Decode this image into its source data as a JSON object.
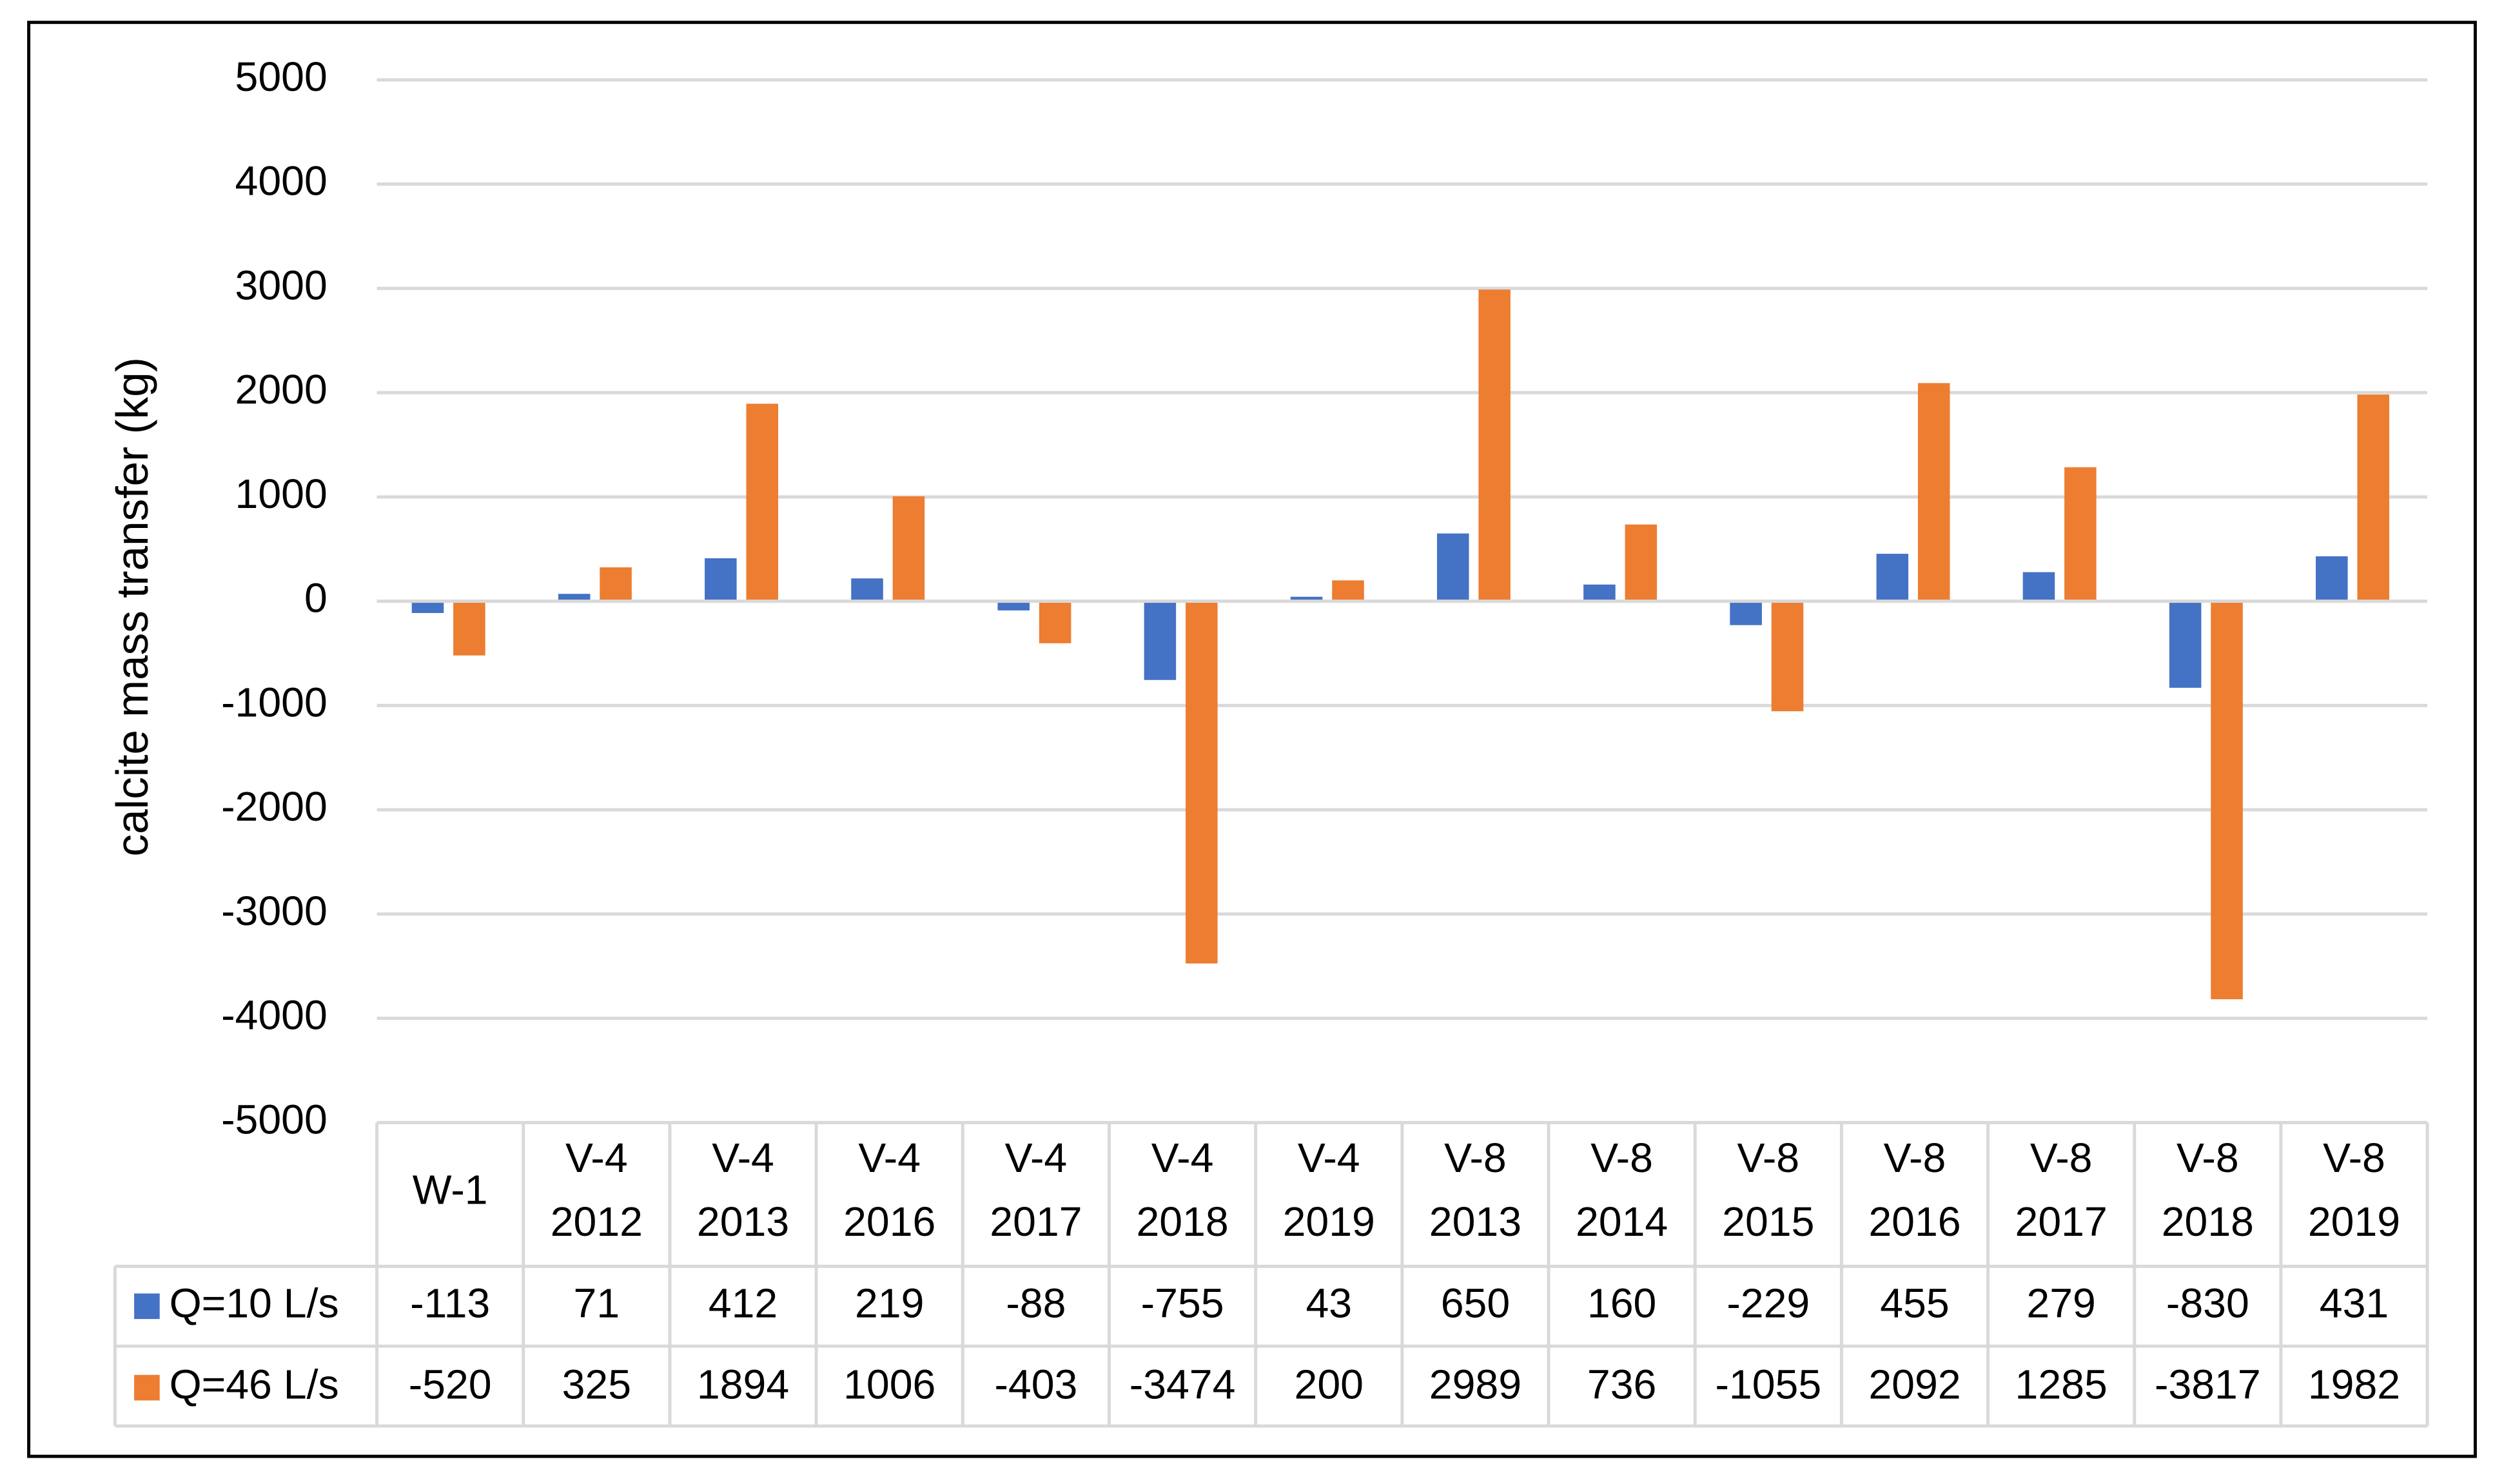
{
  "chart_data": {
    "type": "bar",
    "y_axis_label": "calcite mass transfer (kg)",
    "categories": [
      [
        "W-1"
      ],
      [
        "V-4",
        "2012"
      ],
      [
        "V-4",
        "2013"
      ],
      [
        "V-4",
        "2016"
      ],
      [
        "V-4",
        "2017"
      ],
      [
        "V-4",
        "2018"
      ],
      [
        "V-4",
        "2019"
      ],
      [
        "V-8",
        "2013"
      ],
      [
        "V-8",
        "2014"
      ],
      [
        "V-8",
        "2015"
      ],
      [
        "V-8",
        "2016"
      ],
      [
        "V-8",
        "2017"
      ],
      [
        "V-8",
        "2018"
      ],
      [
        "V-8",
        "2019"
      ]
    ],
    "series": [
      {
        "name": "Q=10 L/s",
        "color": "#4472c4",
        "values": [
          -113,
          71,
          412,
          219,
          -88,
          -755,
          43,
          650,
          160,
          -229,
          455,
          279,
          -830,
          431
        ]
      },
      {
        "name": "Q=46 L/s",
        "color": "#ed7d31",
        "values": [
          -520,
          325,
          1894,
          1006,
          -403,
          -3474,
          200,
          2989,
          736,
          -1055,
          2092,
          1285,
          -3817,
          1982
        ]
      }
    ],
    "ylim": [
      -5000,
      5000
    ],
    "yticks": [
      -5000,
      -4000,
      -3000,
      -2000,
      -1000,
      0,
      1000,
      2000,
      3000,
      4000,
      5000
    ],
    "grid": true
  }
}
